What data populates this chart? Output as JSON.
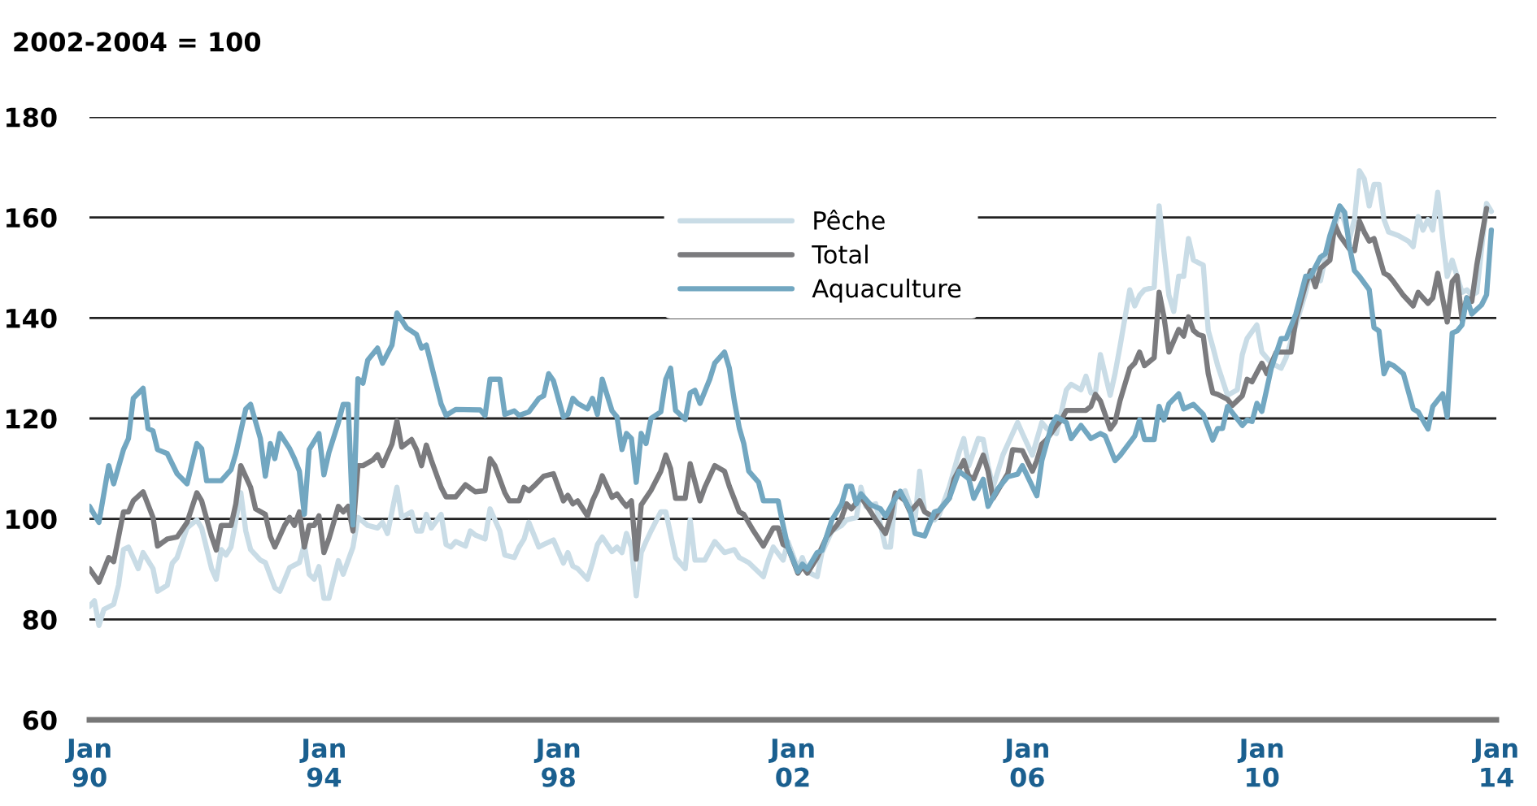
{
  "chart_data": {
    "type": "line",
    "ylabel": "2002-2004 = 100",
    "xlim": [
      "1990-01",
      "2014-01"
    ],
    "xticks": [
      {
        "value": "1990-01",
        "label": "Jan\n90"
      },
      {
        "value": "1994-01",
        "label": "Jan\n94"
      },
      {
        "value": "1998-01",
        "label": "Jan\n98"
      },
      {
        "value": "2002-01",
        "label": "Jan\n02"
      },
      {
        "value": "2006-01",
        "label": "Jan\n06"
      },
      {
        "value": "2010-01",
        "label": "Jan\n10"
      },
      {
        "value": "2014-01",
        "label": "Jan\n14"
      }
    ],
    "ylim": [
      60,
      180
    ],
    "yticks": [
      60,
      80,
      100,
      120,
      140,
      160,
      180
    ],
    "grid": "y",
    "legend": "top",
    "marker": "none",
    "line_style": "solid",
    "series": [
      {
        "name": "Pêche",
        "color": "#c9dce6",
        "x": [
          "1990-01",
          "1990-02",
          "1990-03",
          "1990-04",
          "1990-06",
          "1990-07",
          "1990-08",
          "1990-09",
          "1990-10",
          "1990-11",
          "1990-12",
          "1991-02",
          "1991-03",
          "1991-05",
          "1991-06",
          "1991-07",
          "1991-09",
          "1991-11",
          "1991-12",
          "1992-02",
          "1992-03",
          "1992-04",
          "1992-05",
          "1992-06",
          "1992-08",
          "1992-09",
          "1992-10",
          "1992-12",
          "1993-01",
          "1993-03",
          "1993-04",
          "1993-06",
          "1993-08",
          "1993-09",
          "1993-10",
          "1993-11",
          "1993-12",
          "1994-01",
          "1994-02",
          "1994-04",
          "1994-05",
          "1994-07",
          "1994-08",
          "1994-10",
          "1994-12",
          "1995-01",
          "1995-02",
          "1995-04",
          "1995-05",
          "1995-07",
          "1995-08",
          "1995-09",
          "1995-10",
          "1995-11",
          "1996-01",
          "1996-02",
          "1996-03",
          "1996-04",
          "1996-06",
          "1996-07",
          "1996-08",
          "1996-10",
          "1996-11",
          "1997-01",
          "1997-02",
          "1997-04",
          "1997-05",
          "1997-06",
          "1997-07",
          "1997-09",
          "1997-10",
          "1997-12",
          "1998-02",
          "1998-03",
          "1998-04",
          "1998-05",
          "1998-07",
          "1998-08",
          "1998-09",
          "1998-10",
          "1998-12",
          "1999-01",
          "1999-02",
          "1999-03",
          "1999-04",
          "1999-05",
          "1999-06",
          "1999-07",
          "1999-08",
          "1999-10",
          "1999-11",
          "2000-01",
          "2000-03",
          "2000-04",
          "2000-05",
          "2000-07",
          "2000-09",
          "2000-11",
          "2001-01",
          "2001-02",
          "2001-04",
          "2001-07",
          "2001-08",
          "2001-09",
          "2001-11",
          "2001-12",
          "2002-02",
          "2002-03",
          "2002-04",
          "2002-06",
          "2002-07",
          "2002-09",
          "2002-11",
          "2002-12",
          "2003-02",
          "2003-03",
          "2003-04",
          "2003-06",
          "2003-08",
          "2003-09",
          "2003-10",
          "2003-12",
          "2004-02",
          "2004-03",
          "2004-04",
          "2004-06",
          "2004-07",
          "2004-09",
          "2004-11",
          "2004-12",
          "2005-01",
          "2005-03",
          "2005-04",
          "2005-05",
          "2005-06",
          "2005-08",
          "2005-10",
          "2005-11",
          "2005-12",
          "2006-02",
          "2006-04",
          "2006-05",
          "2006-07",
          "2006-09",
          "2006-10",
          "2006-12",
          "2007-01",
          "2007-02",
          "2007-03",
          "2007-04",
          "2007-06",
          "2007-07",
          "2007-08",
          "2007-10",
          "2007-11",
          "2007-12",
          "2008-01",
          "2008-03",
          "2008-04",
          "2008-05",
          "2008-06",
          "2008-07",
          "2008-08",
          "2008-09",
          "2008-10",
          "2008-11",
          "2009-01",
          "2009-02",
          "2009-03",
          "2009-04",
          "2009-06",
          "2009-08",
          "2009-09",
          "2009-10",
          "2009-12",
          "2010-01",
          "2010-03",
          "2010-05",
          "2010-06",
          "2010-08",
          "2010-10",
          "2010-11",
          "2011-01",
          "2011-02",
          "2011-04",
          "2011-05",
          "2011-07",
          "2011-08",
          "2011-09",
          "2011-10",
          "2011-11",
          "2011-12",
          "2012-01",
          "2012-02",
          "2012-03",
          "2012-05",
          "2012-07",
          "2012-08",
          "2012-09",
          "2012-10",
          "2012-11",
          "2012-12",
          "2013-01",
          "2013-02",
          "2013-03",
          "2013-04",
          "2013-06",
          "2013-07",
          "2013-08",
          "2013-09",
          "2013-11",
          "2013-12"
        ],
        "values": [
          82.6,
          83.7,
          78.8,
          82,
          83,
          86.8,
          93.9,
          94.4,
          92.3,
          90.1,
          93.3,
          90.1,
          85.6,
          86.8,
          91.2,
          92.3,
          98.2,
          99.8,
          98.2,
          90.1,
          88,
          93.9,
          92.8,
          94.4,
          105.2,
          97.6,
          93.9,
          91.8,
          91.3,
          86.3,
          85.6,
          90.3,
          91.3,
          94.9,
          89,
          88,
          90.5,
          84.2,
          84.2,
          91.7,
          89,
          94.4,
          100.3,
          98.7,
          98.2,
          99.3,
          97.1,
          106.3,
          100.3,
          101.4,
          97.6,
          97.6,
          100.9,
          98.2,
          100.9,
          94.9,
          94.4,
          95.5,
          94.6,
          97.6,
          96.8,
          96,
          102,
          97.6,
          92.8,
          92.3,
          94.4,
          96,
          99.3,
          94.4,
          94.9,
          95.8,
          91.2,
          93.3,
          90.6,
          90.1,
          88,
          91.2,
          94.9,
          96.4,
          93.5,
          94.4,
          93.3,
          97.1,
          94.4,
          84.7,
          93.3,
          95.5,
          97.6,
          101.4,
          101.4,
          92.3,
          90.1,
          99.8,
          91.8,
          91.8,
          95.5,
          93.3,
          93.9,
          92.3,
          91.3,
          88.5,
          91.8,
          94.4,
          91.8,
          95.5,
          90.1,
          92.3,
          89.5,
          88.5,
          93.3,
          97.6,
          98.7,
          99.8,
          100.3,
          106.3,
          102.5,
          103,
          94.4,
          94.4,
          104.1,
          105.6,
          99.8,
          109.5,
          101.4,
          99.8,
          100.9,
          106.3,
          113.2,
          116,
          110.6,
          116,
          115.8,
          110.6,
          106.3,
          112.7,
          117,
          119.2,
          117,
          112.7,
          119.2,
          118,
          117,
          125.7,
          126.8,
          125.7,
          128.4,
          125.1,
          125.1,
          132.7,
          124.6,
          128.9,
          134.3,
          145.6,
          142.4,
          144.5,
          145.6,
          146.1,
          162.3,
          153.2,
          144.5,
          141.3,
          148.3,
          148.3,
          155.8,
          151.5,
          150.5,
          137.5,
          134.3,
          130.5,
          124.6,
          125.7,
          132.7,
          135.9,
          138.6,
          133.2,
          131,
          130,
          132.1,
          138.6,
          145.1,
          149.4,
          147.4,
          152.1,
          158,
          162.3,
          155.8,
          159.6,
          169.3,
          167.7,
          162.3,
          166.6,
          166.6,
          159.6,
          157.1,
          156.4,
          155.3,
          154.2,
          160.2,
          157.5,
          159.6,
          157.5,
          165,
          155.8,
          148.3,
          151.5,
          145.1,
          145.6,
          144.5,
          145.1,
          162.8,
          161.2
        ]
      },
      {
        "name": "Total",
        "color": "#7b7b7e",
        "x": [
          "1990-01",
          "1990-03",
          "1990-05",
          "1990-06",
          "1990-08",
          "1990-09",
          "1990-10",
          "1990-12",
          "1991-02",
          "1991-03",
          "1991-05",
          "1991-07",
          "1991-09",
          "1991-11",
          "1991-12",
          "1992-02",
          "1992-03",
          "1992-04",
          "1992-06",
          "1992-07",
          "1992-08",
          "1992-10",
          "1992-11",
          "1993-01",
          "1993-02",
          "1993-03",
          "1993-05",
          "1993-06",
          "1993-07",
          "1993-08",
          "1993-09",
          "1993-10",
          "1993-11",
          "1993-12",
          "1994-01",
          "1994-02",
          "1994-04",
          "1994-05",
          "1994-06",
          "1994-07",
          "1994-08",
          "1994-09",
          "1994-11",
          "1994-12",
          "1995-01",
          "1995-03",
          "1995-04",
          "1995-05",
          "1995-07",
          "1995-08",
          "1995-09",
          "1995-10",
          "1995-11",
          "1996-01",
          "1996-02",
          "1996-04",
          "1996-06",
          "1996-08",
          "1996-10",
          "1996-11",
          "1996-12",
          "1997-02",
          "1997-03",
          "1997-05",
          "1997-06",
          "1997-07",
          "1997-08",
          "1997-10",
          "1997-12",
          "1998-02",
          "1998-03",
          "1998-04",
          "1998-05",
          "1998-07",
          "1998-08",
          "1998-09",
          "1998-10",
          "1998-12",
          "1999-01",
          "1999-02",
          "1999-03",
          "1999-04",
          "1999-05",
          "1999-06",
          "1999-08",
          "1999-10",
          "1999-11",
          "1999-12",
          "2000-01",
          "2000-03",
          "2000-04",
          "2000-06",
          "2000-07",
          "2000-09",
          "2000-11",
          "2000-12",
          "2001-02",
          "2001-03",
          "2001-05",
          "2001-07",
          "2001-09",
          "2001-10",
          "2001-11",
          "2001-12",
          "2002-02",
          "2002-03",
          "2002-04",
          "2002-06",
          "2002-08",
          "2002-10",
          "2002-11",
          "2002-12",
          "2003-01",
          "2003-03",
          "2003-05",
          "2003-06",
          "2003-08",
          "2003-09",
          "2003-10",
          "2003-12",
          "2004-01",
          "2004-03",
          "2004-04",
          "2004-06",
          "2004-07",
          "2004-09",
          "2004-10",
          "2004-12",
          "2005-01",
          "2005-02",
          "2005-04",
          "2005-05",
          "2005-06",
          "2005-09",
          "2005-10",
          "2005-12",
          "2006-02",
          "2006-03",
          "2006-04",
          "2006-05",
          "2006-07",
          "2006-08",
          "2006-09",
          "2006-11",
          "2007-01",
          "2007-02",
          "2007-03",
          "2007-04",
          "2007-06",
          "2007-07",
          "2007-08",
          "2007-10",
          "2007-11",
          "2007-12",
          "2008-01",
          "2008-03",
          "2008-04",
          "2008-05",
          "2008-06",
          "2008-08",
          "2008-09",
          "2008-10",
          "2008-11",
          "2008-12",
          "2009-01",
          "2009-02",
          "2009-03",
          "2009-04",
          "2009-06",
          "2009-07",
          "2009-09",
          "2009-10",
          "2009-11",
          "2010-01",
          "2010-02",
          "2010-04",
          "2010-05",
          "2010-07",
          "2010-08",
          "2010-10",
          "2010-11",
          "2010-12",
          "2011-01",
          "2011-03",
          "2011-04",
          "2011-05",
          "2011-07",
          "2011-08",
          "2011-09",
          "2011-10",
          "2011-11",
          "2011-12",
          "2012-02",
          "2012-03",
          "2012-04",
          "2012-06",
          "2012-08",
          "2012-09",
          "2012-11",
          "2012-12",
          "2013-01",
          "2013-03",
          "2013-04",
          "2013-05",
          "2013-06",
          "2013-07",
          "2013-08",
          "2013-09",
          "2013-11"
        ],
        "values": [
          90.1,
          87.4,
          92.3,
          91.5,
          101.4,
          101.4,
          103.6,
          105.4,
          100.3,
          94.6,
          96,
          96.4,
          99.3,
          105.2,
          103.6,
          96.5,
          93.8,
          98.7,
          98.7,
          103,
          110.6,
          106.3,
          102,
          100.9,
          96.5,
          94.4,
          98.7,
          100.3,
          98.7,
          101.4,
          94.4,
          98.7,
          98.7,
          100.6,
          93.3,
          96,
          102.5,
          101.4,
          102.5,
          97.6,
          110.6,
          110.6,
          111.7,
          112.8,
          110.6,
          114.9,
          119.5,
          114.3,
          115.8,
          113.8,
          110.6,
          114.7,
          111.7,
          106.3,
          104.4,
          104.4,
          106.8,
          105.4,
          105.6,
          112,
          110.6,
          105.2,
          103.6,
          103.6,
          106.3,
          105.6,
          106.5,
          108.5,
          109,
          103.6,
          104.7,
          103,
          103.6,
          100.6,
          103.6,
          105.7,
          108.6,
          104.3,
          105,
          103.6,
          102.5,
          103.6,
          92,
          102.8,
          105.7,
          109.5,
          112.7,
          110,
          104.1,
          104.1,
          111,
          103.6,
          106.3,
          110.6,
          109.5,
          106.5,
          101.4,
          100.9,
          97.6,
          94.6,
          98.2,
          98.2,
          94.9,
          94.4,
          89.2,
          90.6,
          89.2,
          92.3,
          96.5,
          98.7,
          100.3,
          103,
          102,
          104.4,
          101.4,
          99.8,
          97.1,
          100.3,
          105.2,
          103.6,
          101.4,
          103.6,
          101.4,
          100.3,
          101.7,
          104.1,
          107.9,
          111.6,
          108.5,
          108,
          112.7,
          109.5,
          104.1,
          109,
          113.8,
          113.6,
          109.5,
          111.6,
          114.9,
          115.8,
          118.6,
          119.7,
          121.6,
          121.6,
          121.6,
          122.4,
          124.8,
          123.5,
          117.9,
          119.2,
          123.5,
          130,
          131,
          133.2,
          130.5,
          132.1,
          145.1,
          140.2,
          133.2,
          137.7,
          136.4,
          140.2,
          137.5,
          136.7,
          136.4,
          128.9,
          125.1,
          124.8,
          123.8,
          122.6,
          124.5,
          127.8,
          127.3,
          131,
          128.9,
          133.2,
          133.2,
          133.2,
          139.7,
          146.7,
          149.4,
          146.2,
          149.9,
          151.5,
          158.6,
          156.4,
          153.7,
          153.4,
          159.3,
          157.1,
          155.3,
          155.8,
          148.9,
          148.4,
          147.2,
          144.5,
          142.4,
          145.1,
          142.9,
          144,
          148.9,
          139.2,
          147.2,
          148.4,
          139.7,
          144,
          143.3,
          150.5,
          161.8
        ]
      },
      {
        "name": "Aquaculture",
        "color": "#72a7c1",
        "x": [
          "1990-01",
          "1990-03",
          "1990-05",
          "1990-06",
          "1990-08",
          "1990-09",
          "1990-10",
          "1990-12",
          "1991-01",
          "1991-02",
          "1991-03",
          "1991-05",
          "1991-07",
          "1991-09",
          "1991-11",
          "1991-12",
          "1992-01",
          "1992-04",
          "1992-06",
          "1992-07",
          "1992-09",
          "1992-10",
          "1992-12",
          "1993-01",
          "1993-02",
          "1993-03",
          "1993-04",
          "1993-06",
          "1993-07",
          "1993-08",
          "1993-09",
          "1993-10",
          "1993-12",
          "1994-01",
          "1994-02",
          "1994-04",
          "1994-05",
          "1994-06",
          "1994-07",
          "1994-08",
          "1994-09",
          "1994-10",
          "1994-12",
          "1995-01",
          "1995-03",
          "1995-04",
          "1995-06",
          "1995-08",
          "1995-09",
          "1995-10",
          "1996-01",
          "1996-02",
          "1996-04",
          "1996-09",
          "1996-10",
          "1996-11",
          "1997-01",
          "1997-02",
          "1997-04",
          "1997-05",
          "1997-07",
          "1997-09",
          "1997-10",
          "1997-11",
          "1997-12",
          "1998-02",
          "1998-03",
          "1998-04",
          "1998-05",
          "1998-07",
          "1998-08",
          "1998-09",
          "1998-10",
          "1998-12",
          "1999-01",
          "1999-02",
          "1999-03",
          "1999-04",
          "1999-05",
          "1999-06",
          "1999-07",
          "1999-08",
          "1999-10",
          "1999-11",
          "1999-12",
          "2000-01",
          "2000-03",
          "2000-04",
          "2000-05",
          "2000-06",
          "2000-08",
          "2000-09",
          "2000-11",
          "2000-12",
          "2001-01",
          "2001-02",
          "2001-03",
          "2001-04",
          "2001-06",
          "2001-07",
          "2001-10",
          "2001-11",
          "2001-12",
          "2002-02",
          "2002-03",
          "2002-04",
          "2002-06",
          "2002-07",
          "2002-09",
          "2002-11",
          "2002-12",
          "2003-01",
          "2003-02",
          "2003-03",
          "2003-05",
          "2003-07",
          "2003-08",
          "2003-10",
          "2003-11",
          "2004-01",
          "2004-02",
          "2004-04",
          "2004-06",
          "2004-07",
          "2004-09",
          "2004-11",
          "2005-01",
          "2005-02",
          "2005-04",
          "2005-05",
          "2005-07",
          "2005-09",
          "2005-11",
          "2005-12",
          "2006-03",
          "2006-04",
          "2006-06",
          "2006-07",
          "2006-09",
          "2006-10",
          "2006-12",
          "2007-02",
          "2007-04",
          "2007-05",
          "2007-07",
          "2007-08",
          "2007-11",
          "2007-12",
          "2008-01",
          "2008-03",
          "2008-04",
          "2008-05",
          "2008-06",
          "2008-08",
          "2008-09",
          "2008-11",
          "2009-01",
          "2009-03",
          "2009-04",
          "2009-05",
          "2009-06",
          "2009-09",
          "2009-10",
          "2009-11",
          "2009-12",
          "2010-01",
          "2010-03",
          "2010-05",
          "2010-06",
          "2010-08",
          "2010-10",
          "2010-11",
          "2011-01",
          "2011-02",
          "2011-03",
          "2011-05",
          "2011-06",
          "2011-07",
          "2011-08",
          "2011-09",
          "2011-11",
          "2011-12",
          "2012-01",
          "2012-02",
          "2012-03",
          "2012-04",
          "2012-06",
          "2012-08",
          "2012-09",
          "2012-11",
          "2012-12",
          "2013-02",
          "2013-03",
          "2013-04",
          "2013-05",
          "2013-06",
          "2013-07",
          "2013-08",
          "2013-10",
          "2013-11",
          "2013-12"
        ],
        "values": [
          102.5,
          99.3,
          110.6,
          107,
          113.8,
          116,
          124,
          126,
          118,
          117.5,
          113.8,
          113,
          109,
          107,
          115,
          114,
          107.6,
          107.6,
          109.8,
          113,
          121.9,
          122.8,
          116,
          108.5,
          115,
          112,
          117,
          114,
          112,
          109.5,
          100.9,
          113.8,
          117,
          108.8,
          113.2,
          119.2,
          122.8,
          122.8,
          98.8,
          127.9,
          127,
          131.6,
          134,
          131,
          134.6,
          141,
          138,
          136.7,
          134,
          134.6,
          122.9,
          120.6,
          121.8,
          121.7,
          120.6,
          127.8,
          127.8,
          120.8,
          121.5,
          120.6,
          121.3,
          124,
          124.5,
          128.9,
          127.5,
          120.3,
          120.8,
          124,
          123,
          121.9,
          124,
          120.8,
          127.8,
          121.5,
          120.3,
          113.8,
          117,
          116,
          107.3,
          117,
          115,
          120,
          121.3,
          127.8,
          130,
          121.6,
          119.8,
          125.1,
          125.6,
          123,
          127.8,
          131,
          133.2,
          130,
          123.5,
          118.1,
          115,
          109.5,
          107.3,
          103.6,
          103.6,
          98.7,
          94.4,
          89.5,
          91,
          90,
          93.3,
          93.7,
          99.8,
          103,
          106.5,
          106.5,
          103,
          105,
          102.8,
          102,
          100.5,
          104.1,
          105.5,
          101.7,
          97.1,
          96.6,
          101.4,
          101.7,
          104.1,
          109.5,
          108,
          104.1,
          107.9,
          102.5,
          106,
          108.4,
          108.9,
          110.6,
          104.6,
          111.6,
          118.6,
          120.3,
          119.2,
          116,
          118.6,
          116,
          117,
          116.5,
          111.6,
          112.6,
          116.5,
          119.7,
          115.8,
          115.8,
          122.4,
          119.7,
          122.9,
          124.9,
          121.9,
          122.8,
          120.8,
          115.7,
          118,
          118,
          122.4,
          118.6,
          119.7,
          119.4,
          123,
          121.4,
          130,
          135.9,
          135.9,
          140.8,
          148.3,
          148.3,
          152.1,
          152.8,
          156.4,
          162.3,
          161,
          154.2,
          149.4,
          148.3,
          145.6,
          138.1,
          137.4,
          128.9,
          131,
          130.5,
          128.9,
          121.9,
          121.3,
          117.9,
          122.4,
          124.9,
          120.3,
          137,
          137.4,
          138.6,
          144,
          140.8,
          142.6,
          144.6,
          157.5
        ]
      }
    ]
  }
}
